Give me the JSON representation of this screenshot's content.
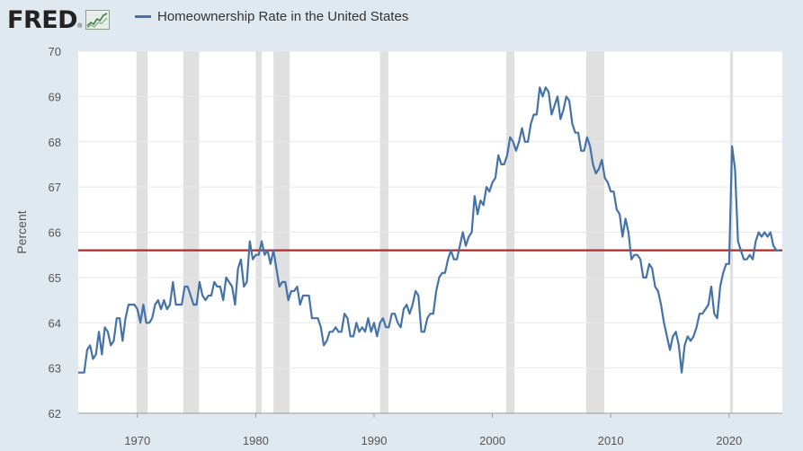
{
  "brand": {
    "logo_text": "FRED",
    "logo_mark": "®"
  },
  "colors": {
    "background": "#e1e9f0",
    "plot_background": "#ffffff",
    "series": "#4572a7",
    "reference_line": "#b02a2a",
    "recession": "#e0e0e0",
    "grid": "#e8e8e8"
  },
  "chart_data": {
    "type": "line",
    "title": "",
    "xlabel": "",
    "ylabel": "Percent",
    "xlim": [
      1965.0,
      2024.5
    ],
    "ylim": [
      62,
      70
    ],
    "x_ticks": [
      "1970",
      "1980",
      "1990",
      "2000",
      "2010",
      "2020"
    ],
    "y_ticks": [
      "62",
      "63",
      "64",
      "65",
      "66",
      "67",
      "68",
      "69",
      "70"
    ],
    "grid": "horizontal",
    "legend_position": "top",
    "reference_line": {
      "y": 65.6,
      "color": "#b02a2a"
    },
    "recessions": [
      [
        1969.92,
        1970.87
      ],
      [
        1973.87,
        1975.21
      ],
      [
        1980.0,
        1980.5
      ],
      [
        1981.5,
        1982.87
      ],
      [
        1990.5,
        1991.21
      ],
      [
        2001.17,
        2001.87
      ],
      [
        2007.92,
        2009.46
      ],
      [
        2020.08,
        2020.33
      ]
    ],
    "series": [
      {
        "name": "Homeownership Rate in the United States",
        "color": "#4572a7",
        "points": [
          [
            1965.0,
            62.9
          ],
          [
            1965.5,
            62.9
          ],
          [
            1965.75,
            63.4
          ],
          [
            1966.0,
            63.5
          ],
          [
            1966.25,
            63.2
          ],
          [
            1966.5,
            63.3
          ],
          [
            1966.75,
            63.8
          ],
          [
            1967.0,
            63.3
          ],
          [
            1967.25,
            63.9
          ],
          [
            1967.5,
            63.8
          ],
          [
            1967.75,
            63.5
          ],
          [
            1968.0,
            63.6
          ],
          [
            1968.25,
            64.1
          ],
          [
            1968.5,
            64.1
          ],
          [
            1968.75,
            63.6
          ],
          [
            1969.0,
            64.1
          ],
          [
            1969.25,
            64.4
          ],
          [
            1969.5,
            64.4
          ],
          [
            1969.75,
            64.4
          ],
          [
            1970.0,
            64.3
          ],
          [
            1970.25,
            64.0
          ],
          [
            1970.5,
            64.4
          ],
          [
            1970.75,
            64.0
          ],
          [
            1971.0,
            64.0
          ],
          [
            1971.25,
            64.1
          ],
          [
            1971.5,
            64.4
          ],
          [
            1971.75,
            64.5
          ],
          [
            1972.0,
            64.3
          ],
          [
            1972.25,
            64.5
          ],
          [
            1972.5,
            64.3
          ],
          [
            1972.75,
            64.4
          ],
          [
            1973.0,
            64.9
          ],
          [
            1973.25,
            64.4
          ],
          [
            1973.5,
            64.4
          ],
          [
            1973.75,
            64.4
          ],
          [
            1974.0,
            64.8
          ],
          [
            1974.25,
            64.8
          ],
          [
            1974.5,
            64.6
          ],
          [
            1974.75,
            64.4
          ],
          [
            1975.0,
            64.4
          ],
          [
            1975.25,
            64.9
          ],
          [
            1975.5,
            64.6
          ],
          [
            1975.75,
            64.5
          ],
          [
            1976.0,
            64.6
          ],
          [
            1976.25,
            64.6
          ],
          [
            1976.5,
            64.9
          ],
          [
            1976.75,
            64.8
          ],
          [
            1977.0,
            64.8
          ],
          [
            1977.25,
            64.5
          ],
          [
            1977.5,
            65.0
          ],
          [
            1977.75,
            64.9
          ],
          [
            1978.0,
            64.8
          ],
          [
            1978.25,
            64.4
          ],
          [
            1978.5,
            65.2
          ],
          [
            1978.75,
            65.4
          ],
          [
            1979.0,
            64.8
          ],
          [
            1979.25,
            64.9
          ],
          [
            1979.5,
            65.8
          ],
          [
            1979.75,
            65.4
          ],
          [
            1980.0,
            65.5
          ],
          [
            1980.25,
            65.5
          ],
          [
            1980.5,
            65.8
          ],
          [
            1980.75,
            65.5
          ],
          [
            1981.0,
            65.6
          ],
          [
            1981.25,
            65.3
          ],
          [
            1981.5,
            65.6
          ],
          [
            1981.75,
            65.2
          ],
          [
            1982.0,
            64.8
          ],
          [
            1982.25,
            64.9
          ],
          [
            1982.5,
            64.9
          ],
          [
            1982.75,
            64.5
          ],
          [
            1983.0,
            64.7
          ],
          [
            1983.25,
            64.7
          ],
          [
            1983.5,
            64.8
          ],
          [
            1983.75,
            64.4
          ],
          [
            1984.0,
            64.6
          ],
          [
            1984.25,
            64.6
          ],
          [
            1984.5,
            64.6
          ],
          [
            1984.75,
            64.1
          ],
          [
            1985.0,
            64.1
          ],
          [
            1985.25,
            64.1
          ],
          [
            1985.5,
            63.9
          ],
          [
            1985.75,
            63.5
          ],
          [
            1986.0,
            63.6
          ],
          [
            1986.25,
            63.8
          ],
          [
            1986.5,
            63.8
          ],
          [
            1986.75,
            63.9
          ],
          [
            1987.0,
            63.8
          ],
          [
            1987.25,
            63.8
          ],
          [
            1987.5,
            64.2
          ],
          [
            1987.75,
            64.1
          ],
          [
            1988.0,
            63.7
          ],
          [
            1988.25,
            63.7
          ],
          [
            1988.5,
            64.0
          ],
          [
            1988.75,
            63.8
          ],
          [
            1989.0,
            63.9
          ],
          [
            1989.25,
            63.8
          ],
          [
            1989.5,
            64.1
          ],
          [
            1989.75,
            63.8
          ],
          [
            1990.0,
            64.0
          ],
          [
            1990.25,
            63.7
          ],
          [
            1990.5,
            64.0
          ],
          [
            1990.75,
            64.1
          ],
          [
            1991.0,
            63.9
          ],
          [
            1991.25,
            63.9
          ],
          [
            1991.5,
            64.2
          ],
          [
            1991.75,
            64.2
          ],
          [
            1992.0,
            64.0
          ],
          [
            1992.25,
            63.9
          ],
          [
            1992.5,
            64.3
          ],
          [
            1992.75,
            64.4
          ],
          [
            1993.0,
            64.2
          ],
          [
            1993.25,
            64.4
          ],
          [
            1993.5,
            64.7
          ],
          [
            1993.75,
            64.6
          ],
          [
            1994.0,
            63.8
          ],
          [
            1994.25,
            63.8
          ],
          [
            1994.5,
            64.1
          ],
          [
            1994.75,
            64.2
          ],
          [
            1995.0,
            64.2
          ],
          [
            1995.25,
            64.7
          ],
          [
            1995.5,
            65.0
          ],
          [
            1995.75,
            65.1
          ],
          [
            1996.0,
            65.1
          ],
          [
            1996.25,
            65.4
          ],
          [
            1996.5,
            65.6
          ],
          [
            1996.75,
            65.4
          ],
          [
            1997.0,
            65.4
          ],
          [
            1997.25,
            65.7
          ],
          [
            1997.5,
            66.0
          ],
          [
            1997.75,
            65.7
          ],
          [
            1998.0,
            65.9
          ],
          [
            1998.25,
            66.0
          ],
          [
            1998.5,
            66.8
          ],
          [
            1998.75,
            66.4
          ],
          [
            1999.0,
            66.7
          ],
          [
            1999.25,
            66.6
          ],
          [
            1999.5,
            67.0
          ],
          [
            1999.75,
            66.9
          ],
          [
            2000.0,
            67.1
          ],
          [
            2000.25,
            67.2
          ],
          [
            2000.5,
            67.7
          ],
          [
            2000.75,
            67.5
          ],
          [
            2001.0,
            67.5
          ],
          [
            2001.25,
            67.7
          ],
          [
            2001.5,
            68.1
          ],
          [
            2001.75,
            68.0
          ],
          [
            2002.0,
            67.8
          ],
          [
            2002.25,
            68.0
          ],
          [
            2002.5,
            68.3
          ],
          [
            2002.75,
            68.0
          ],
          [
            2003.0,
            68.0
          ],
          [
            2003.25,
            68.4
          ],
          [
            2003.5,
            68.6
          ],
          [
            2003.75,
            68.6
          ],
          [
            2004.0,
            69.2
          ],
          [
            2004.25,
            69.0
          ],
          [
            2004.5,
            69.2
          ],
          [
            2004.75,
            69.1
          ],
          [
            2005.0,
            68.6
          ],
          [
            2005.25,
            68.8
          ],
          [
            2005.5,
            69.0
          ],
          [
            2005.75,
            68.5
          ],
          [
            2006.0,
            68.7
          ],
          [
            2006.25,
            69.0
          ],
          [
            2006.5,
            68.9
          ],
          [
            2006.75,
            68.4
          ],
          [
            2007.0,
            68.2
          ],
          [
            2007.25,
            68.2
          ],
          [
            2007.5,
            67.8
          ],
          [
            2007.75,
            67.8
          ],
          [
            2008.0,
            68.1
          ],
          [
            2008.25,
            67.9
          ],
          [
            2008.5,
            67.5
          ],
          [
            2008.75,
            67.3
          ],
          [
            2009.0,
            67.4
          ],
          [
            2009.25,
            67.6
          ],
          [
            2009.5,
            67.2
          ],
          [
            2009.75,
            67.1
          ],
          [
            2010.0,
            66.9
          ],
          [
            2010.25,
            66.9
          ],
          [
            2010.5,
            66.5
          ],
          [
            2010.75,
            66.4
          ],
          [
            2011.0,
            65.9
          ],
          [
            2011.25,
            66.3
          ],
          [
            2011.5,
            66.0
          ],
          [
            2011.75,
            65.4
          ],
          [
            2012.0,
            65.5
          ],
          [
            2012.25,
            65.5
          ],
          [
            2012.5,
            65.4
          ],
          [
            2012.75,
            65.0
          ],
          [
            2013.0,
            65.0
          ],
          [
            2013.25,
            65.3
          ],
          [
            2013.5,
            65.2
          ],
          [
            2013.75,
            64.8
          ],
          [
            2014.0,
            64.7
          ],
          [
            2014.25,
            64.4
          ],
          [
            2014.5,
            64.0
          ],
          [
            2014.75,
            63.7
          ],
          [
            2015.0,
            63.4
          ],
          [
            2015.25,
            63.7
          ],
          [
            2015.5,
            63.8
          ],
          [
            2015.75,
            63.5
          ],
          [
            2016.0,
            62.9
          ],
          [
            2016.25,
            63.5
          ],
          [
            2016.5,
            63.7
          ],
          [
            2016.75,
            63.6
          ],
          [
            2017.0,
            63.7
          ],
          [
            2017.25,
            63.9
          ],
          [
            2017.5,
            64.2
          ],
          [
            2017.75,
            64.2
          ],
          [
            2018.0,
            64.3
          ],
          [
            2018.25,
            64.4
          ],
          [
            2018.5,
            64.8
          ],
          [
            2018.75,
            64.2
          ],
          [
            2019.0,
            64.1
          ],
          [
            2019.25,
            64.8
          ],
          [
            2019.5,
            65.1
          ],
          [
            2019.75,
            65.3
          ],
          [
            2020.0,
            65.3
          ],
          [
            2020.25,
            67.9
          ],
          [
            2020.5,
            67.4
          ],
          [
            2020.75,
            65.8
          ],
          [
            2021.0,
            65.6
          ],
          [
            2021.25,
            65.4
          ],
          [
            2021.5,
            65.4
          ],
          [
            2021.75,
            65.5
          ],
          [
            2022.0,
            65.4
          ],
          [
            2022.25,
            65.8
          ],
          [
            2022.5,
            66.0
          ],
          [
            2022.75,
            65.9
          ],
          [
            2023.0,
            66.0
          ],
          [
            2023.25,
            65.9
          ],
          [
            2023.5,
            66.0
          ],
          [
            2023.75,
            65.7
          ],
          [
            2024.0,
            65.6
          ],
          [
            2024.25,
            65.6
          ]
        ]
      }
    ]
  }
}
